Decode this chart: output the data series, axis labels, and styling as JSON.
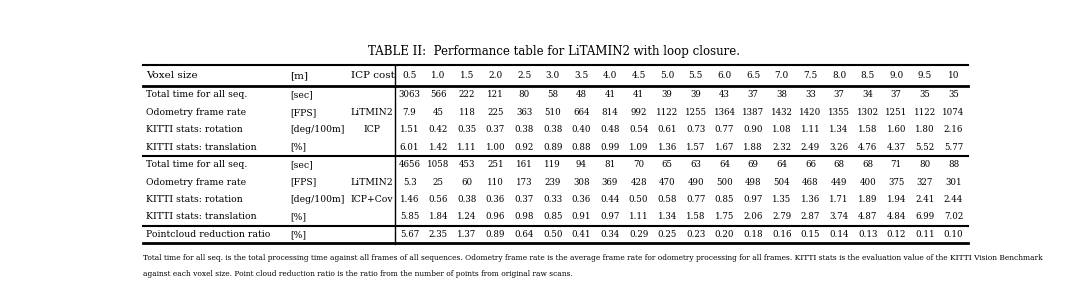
{
  "title": "TABLE II:  Performance table for LiTAMIN2 with loop closure.",
  "col_headers": [
    "0.5",
    "1.0",
    "1.5",
    "2.0",
    "2.5",
    "3.0",
    "3.5",
    "4.0",
    "4.5",
    "5.0",
    "5.5",
    "6.0",
    "6.5",
    "7.0",
    "7.5",
    "8.0",
    "8.5",
    "9.0",
    "9.5",
    "10"
  ],
  "section1": [
    [
      "Total time for all seq.",
      "[sec]",
      "",
      "3063",
      "566",
      "222",
      "121",
      "80",
      "58",
      "48",
      "41",
      "41",
      "39",
      "39",
      "43",
      "37",
      "38",
      "33",
      "37",
      "34",
      "37",
      "35",
      "35"
    ],
    [
      "Odometry frame rate",
      "[FPS]",
      "LiTMIN2",
      "7.9",
      "45",
      "118",
      "225",
      "363",
      "510",
      "664",
      "814",
      "992",
      "1122",
      "1255",
      "1364",
      "1387",
      "1432",
      "1420",
      "1355",
      "1302",
      "1251",
      "1122",
      "1074"
    ],
    [
      "KITTI stats: rotation",
      "[deg/100m]",
      "ICP",
      "1.51",
      "0.42",
      "0.35",
      "0.37",
      "0.38",
      "0.38",
      "0.40",
      "0.48",
      "0.54",
      "0.61",
      "0.73",
      "0.77",
      "0.90",
      "1.08",
      "1.11",
      "1.34",
      "1.58",
      "1.60",
      "1.80",
      "2.16"
    ],
    [
      "KITTI stats: translation",
      "[%]",
      "",
      "6.01",
      "1.42",
      "1.11",
      "1.00",
      "0.92",
      "0.89",
      "0.88",
      "0.99",
      "1.09",
      "1.36",
      "1.57",
      "1.67",
      "1.88",
      "2.32",
      "2.49",
      "3.26",
      "4.76",
      "4.37",
      "5.52",
      "5.77"
    ]
  ],
  "section2": [
    [
      "Total time for all seq.",
      "[sec]",
      "",
      "4656",
      "1058",
      "453",
      "251",
      "161",
      "119",
      "94",
      "81",
      "70",
      "65",
      "63",
      "64",
      "69",
      "64",
      "66",
      "68",
      "68",
      "71",
      "80",
      "88"
    ],
    [
      "Odometry frame rate",
      "[FPS]",
      "LiTMIN2",
      "5.3",
      "25",
      "60",
      "110",
      "173",
      "239",
      "308",
      "369",
      "428",
      "470",
      "490",
      "500",
      "498",
      "504",
      "468",
      "449",
      "400",
      "375",
      "327",
      "301"
    ],
    [
      "KITTI stats: rotation",
      "[deg/100m]",
      "ICP+Cov",
      "1.46",
      "0.56",
      "0.38",
      "0.36",
      "0.37",
      "0.33",
      "0.36",
      "0.44",
      "0.50",
      "0.58",
      "0.77",
      "0.85",
      "0.97",
      "1.35",
      "1.36",
      "1.71",
      "1.89",
      "1.94",
      "2.41",
      "2.44"
    ],
    [
      "KITTI stats: translation",
      "[%]",
      "",
      "5.85",
      "1.84",
      "1.24",
      "0.96",
      "0.98",
      "0.85",
      "0.91",
      "0.97",
      "1.11",
      "1.34",
      "1.58",
      "1.75",
      "2.06",
      "2.79",
      "2.87",
      "3.74",
      "4.87",
      "4.84",
      "6.99",
      "7.02"
    ]
  ],
  "section3": [
    [
      "Pointcloud reduction ratio",
      "[%]",
      "",
      "5.67",
      "2.35",
      "1.37",
      "0.89",
      "0.64",
      "0.50",
      "0.41",
      "0.34",
      "0.29",
      "0.25",
      "0.23",
      "0.20",
      "0.18",
      "0.16",
      "0.15",
      "0.14",
      "0.13",
      "0.12",
      "0.11",
      "0.10"
    ]
  ],
  "footnote1": "Total time for all seq. is the total processing time against all frames of all sequences. Odometry frame rate is the average frame rate for odometry processing for all frames. KITTI stats is the evaluation value of the KITTI Vision Benchmark",
  "footnote2": "against each voxel size. Point cloud reduction ratio is the ratio from the number of points from original raw scans.",
  "bg_color": "#ffffff",
  "text_color": "#000000",
  "line_color": "#000000"
}
